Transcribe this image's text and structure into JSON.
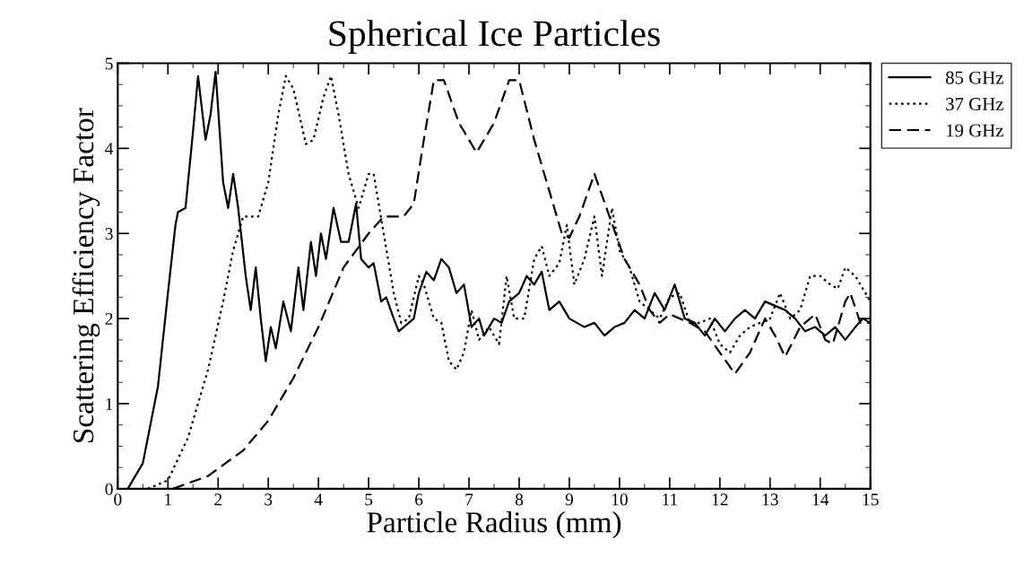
{
  "chart_data": {
    "type": "line",
    "title": "Spherical Ice Particles",
    "xlabel": "Particle Radius (mm)",
    "ylabel": "Scattering Efficiency Factor",
    "xlim": [
      0,
      15
    ],
    "xticks": [
      0,
      1,
      2,
      3,
      4,
      5,
      6,
      7,
      8,
      9,
      10,
      11,
      12,
      13,
      14,
      15
    ],
    "ylim": [
      0,
      5
    ],
    "yticks": [
      0,
      1,
      2,
      3,
      4,
      5
    ],
    "grid": false,
    "legend": "top right",
    "marker": "none",
    "series": [
      {
        "name": "85 GHz",
        "color": "#000000",
        "line_style": "solid",
        "x": [
          0.2,
          0.5,
          0.8,
          1.0,
          1.15,
          1.2,
          1.35,
          1.5,
          1.6,
          1.75,
          1.85,
          1.95,
          2.1,
          2.2,
          2.3,
          2.4,
          2.55,
          2.65,
          2.75,
          2.85,
          2.95,
          3.05,
          3.15,
          3.3,
          3.45,
          3.6,
          3.7,
          3.85,
          3.95,
          4.05,
          4.15,
          4.3,
          4.45,
          4.6,
          4.75,
          4.85,
          5.0,
          5.1,
          5.25,
          5.35,
          5.5,
          5.6,
          5.8,
          5.9,
          6.0,
          6.15,
          6.3,
          6.45,
          6.6,
          6.75,
          6.9,
          7.05,
          7.2,
          7.3,
          7.5,
          7.65,
          7.8,
          8.0,
          8.15,
          8.3,
          8.45,
          8.6,
          8.8,
          9.0,
          9.3,
          9.5,
          9.7,
          9.9,
          10.1,
          10.3,
          10.5,
          10.7,
          10.9,
          11.1,
          11.3,
          11.5,
          11.7,
          11.9,
          12.1,
          12.3,
          12.5,
          12.7,
          12.9,
          13.1,
          13.3,
          13.5,
          13.7,
          13.9,
          14.1,
          14.3,
          14.5,
          14.7,
          14.85,
          15
        ],
        "values": [
          0,
          0.3,
          1.2,
          2.3,
          3.1,
          3.25,
          3.3,
          4.2,
          4.85,
          4.1,
          4.4,
          4.9,
          3.6,
          3.3,
          3.7,
          3.3,
          2.5,
          2.1,
          2.6,
          2.0,
          1.5,
          1.9,
          1.65,
          2.2,
          1.85,
          2.6,
          2.1,
          2.9,
          2.5,
          3.0,
          2.7,
          3.3,
          2.9,
          2.9,
          3.35,
          2.7,
          2.6,
          2.65,
          2.2,
          2.25,
          2.0,
          1.85,
          1.95,
          2.0,
          2.3,
          2.55,
          2.45,
          2.7,
          2.6,
          2.3,
          2.4,
          1.9,
          2.0,
          1.8,
          2.0,
          1.95,
          2.2,
          2.3,
          2.5,
          2.4,
          2.55,
          2.1,
          2.2,
          2.0,
          1.9,
          1.95,
          1.8,
          1.9,
          1.95,
          2.1,
          2.0,
          2.3,
          2.1,
          2.4,
          2.0,
          1.95,
          1.8,
          2.0,
          1.85,
          2.0,
          2.1,
          2.0,
          2.2,
          2.15,
          2.1,
          2.0,
          1.85,
          1.9,
          1.8,
          1.9,
          1.75,
          1.9,
          2.0,
          1.95
        ]
      },
      {
        "name": "37 GHz",
        "color": "#000000",
        "line_style": "dotted",
        "x": [
          0.6,
          1.0,
          1.4,
          1.8,
          2.1,
          2.3,
          2.5,
          2.8,
          3.0,
          3.2,
          3.35,
          3.5,
          3.75,
          3.9,
          4.1,
          4.25,
          4.4,
          4.6,
          4.8,
          5.0,
          5.1,
          5.3,
          5.5,
          5.65,
          5.8,
          6.0,
          6.1,
          6.3,
          6.45,
          6.6,
          6.75,
          6.9,
          7.05,
          7.2,
          7.4,
          7.6,
          7.75,
          7.9,
          8.1,
          8.3,
          8.45,
          8.6,
          8.8,
          8.95,
          9.1,
          9.3,
          9.5,
          9.65,
          9.85,
          10.0,
          10.2,
          10.4,
          10.6,
          10.8,
          11.0,
          11.2,
          11.4,
          11.6,
          11.8,
          12.0,
          12.2,
          12.4,
          12.6,
          12.8,
          13.0,
          13.2,
          13.4,
          13.6,
          13.8,
          14.0,
          14.2,
          14.35,
          14.5,
          14.7,
          14.9,
          15
        ],
        "values": [
          0,
          0.1,
          0.6,
          1.4,
          2.2,
          2.8,
          3.2,
          3.2,
          3.6,
          4.4,
          4.85,
          4.7,
          4.05,
          4.1,
          4.6,
          4.85,
          4.4,
          3.7,
          3.3,
          3.7,
          3.7,
          3.0,
          2.3,
          1.95,
          2.0,
          2.5,
          2.4,
          2.0,
          1.95,
          1.5,
          1.4,
          1.6,
          2.1,
          1.75,
          1.9,
          1.7,
          2.5,
          2.0,
          2.0,
          2.7,
          2.85,
          2.5,
          2.65,
          3.1,
          2.4,
          2.7,
          3.2,
          2.5,
          3.3,
          2.8,
          2.6,
          2.2,
          2.1,
          2.0,
          2.25,
          2.3,
          1.95,
          1.95,
          2.0,
          1.7,
          1.6,
          1.8,
          1.9,
          1.95,
          2.0,
          2.3,
          2.0,
          2.1,
          2.5,
          2.5,
          2.4,
          2.35,
          2.6,
          2.5,
          2.3,
          2.2
        ]
      },
      {
        "name": "19 GHz",
        "color": "#000000",
        "line_style": "dashed",
        "x": [
          1.1,
          1.8,
          2.5,
          3.0,
          3.5,
          4.0,
          4.5,
          5.0,
          5.3,
          5.7,
          5.9,
          6.1,
          6.3,
          6.5,
          6.8,
          7.15,
          7.5,
          7.8,
          8.0,
          8.3,
          8.7,
          8.85,
          9.0,
          9.2,
          9.5,
          9.8,
          10.1,
          10.4,
          10.6,
          10.8,
          11.0,
          11.2,
          11.4,
          11.7,
          12.0,
          12.3,
          12.6,
          12.9,
          13.1,
          13.3,
          13.6,
          13.9,
          14.1,
          14.25,
          14.5,
          14.6,
          14.8,
          15
        ],
        "values": [
          0,
          0.15,
          0.45,
          0.8,
          1.3,
          1.9,
          2.6,
          3.0,
          3.2,
          3.2,
          3.35,
          4.1,
          4.8,
          4.8,
          4.3,
          3.95,
          4.3,
          4.8,
          4.8,
          4.1,
          3.3,
          3.0,
          2.95,
          3.2,
          3.7,
          3.2,
          2.7,
          2.4,
          2.1,
          1.95,
          2.05,
          2.0,
          1.95,
          1.85,
          1.6,
          1.35,
          1.6,
          2.0,
          1.8,
          1.55,
          1.9,
          2.05,
          1.75,
          1.7,
          2.2,
          2.3,
          1.95,
          1.95
        ]
      }
    ]
  }
}
